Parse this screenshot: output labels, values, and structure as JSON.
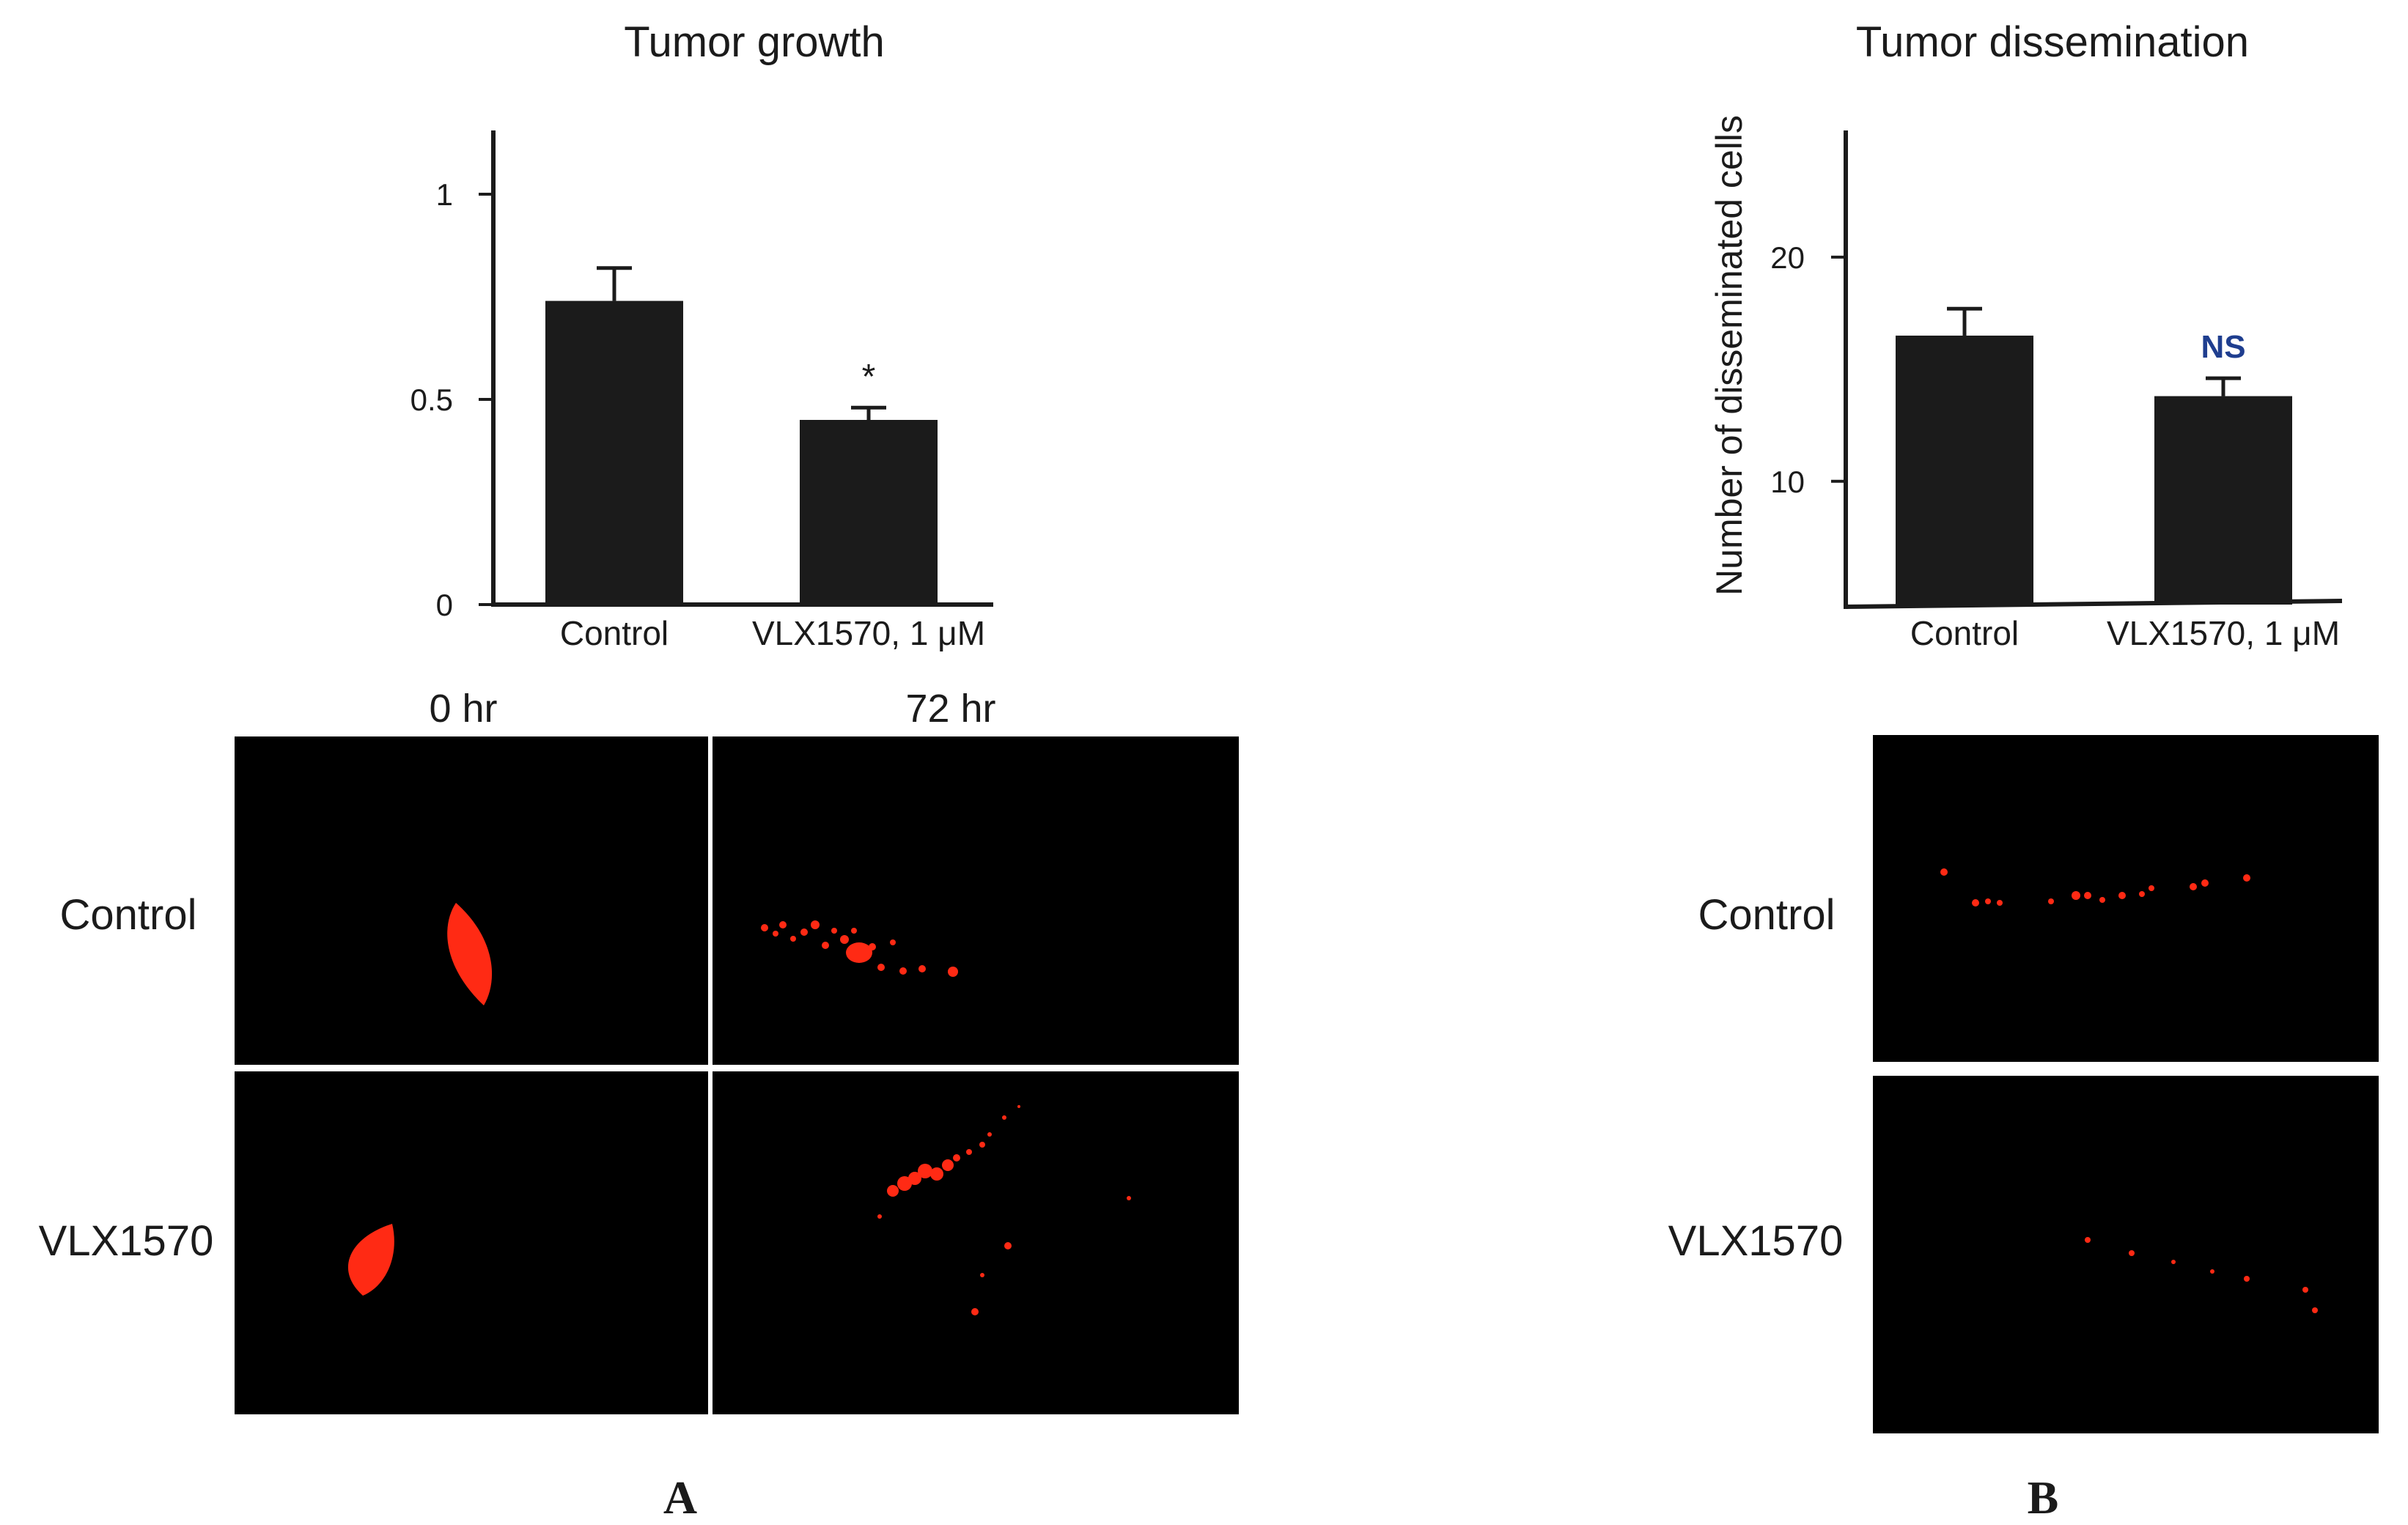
{
  "colors": {
    "bar": "#1b1b1b",
    "axis": "#1b1b1b",
    "micrograph_bg": "#000000",
    "fluorescence": "#ff2a14",
    "ns_label": "#1f3e8f"
  },
  "panel_a": {
    "letter": "A",
    "time_labels": [
      "0 hr",
      "72 hr"
    ],
    "row_labels": [
      "Control",
      "VLX1570"
    ]
  },
  "panel_b": {
    "letter": "B",
    "row_labels": [
      "Control",
      "VLX1570"
    ]
  },
  "chart_data": [
    {
      "type": "bar",
      "title": "Tumor growth",
      "xlabel": "",
      "ylabel": "",
      "categories": [
        "Control",
        "VLX1570, 1 μM"
      ],
      "values": [
        0.74,
        0.45
      ],
      "error": [
        0.08,
        0.03
      ],
      "ylim": [
        0,
        1.0
      ],
      "yticks": [
        0,
        0.5,
        1
      ],
      "ytick_labels": [
        "0",
        "0.5",
        "1"
      ],
      "annotations": [
        "",
        "*"
      ],
      "grid": false,
      "legend": "none"
    },
    {
      "type": "bar",
      "title": "Tumor dissemination",
      "xlabel": "",
      "ylabel": "Number of disseminated cells",
      "categories": [
        "Control",
        "VLX1570, 1 μM"
      ],
      "values": [
        16.5,
        13.8
      ],
      "error": [
        1.2,
        0.8
      ],
      "ylim": [
        4.5,
        25
      ],
      "yticks": [
        10,
        20
      ],
      "ytick_labels": [
        "10",
        "20"
      ],
      "annotations": [
        "",
        "NS"
      ],
      "grid": false,
      "legend": "none"
    }
  ]
}
